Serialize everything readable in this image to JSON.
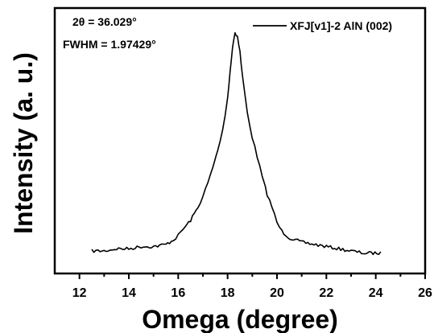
{
  "chart_data": {
    "type": "line",
    "xlabel": "Omega (degree)",
    "ylabel": "Intensity (a. u.)",
    "xlim": [
      11,
      26
    ],
    "x_ticks": [
      "12",
      "14",
      "16",
      "18",
      "20",
      "22",
      "24",
      "26"
    ],
    "x_tick_values": [
      12,
      14,
      16,
      18,
      20,
      22,
      24,
      26
    ],
    "y_ticks_shown": false,
    "grid": false,
    "legend_position": "top-right",
    "annotations": [
      "2θ = 36.029°",
      "FWHM = 1.97429°"
    ],
    "series": [
      {
        "name": "XFJ[v1]-2 AlN (002)",
        "color": "#000000",
        "x": [
          12.5,
          13.0,
          13.5,
          14.0,
          14.5,
          15.0,
          15.5,
          15.8,
          16.0,
          16.2,
          16.5,
          16.8,
          17.0,
          17.2,
          17.4,
          17.6,
          17.8,
          18.0,
          18.1,
          18.2,
          18.3,
          18.4,
          18.5,
          18.6,
          18.8,
          19.0,
          19.2,
          19.4,
          19.6,
          19.8,
          20.0,
          20.2,
          20.5,
          21.0,
          21.5,
          22.0,
          22.5,
          23.0,
          23.5,
          24.2
        ],
        "y": [
          0.0,
          0.0,
          0.01,
          0.01,
          0.02,
          0.02,
          0.03,
          0.05,
          0.07,
          0.1,
          0.14,
          0.2,
          0.25,
          0.31,
          0.38,
          0.46,
          0.55,
          0.7,
          0.82,
          0.93,
          1.0,
          0.98,
          0.91,
          0.8,
          0.63,
          0.52,
          0.43,
          0.34,
          0.26,
          0.2,
          0.13,
          0.09,
          0.06,
          0.04,
          0.03,
          0.02,
          0.01,
          0.0,
          -0.01,
          -0.01
        ]
      }
    ]
  }
}
